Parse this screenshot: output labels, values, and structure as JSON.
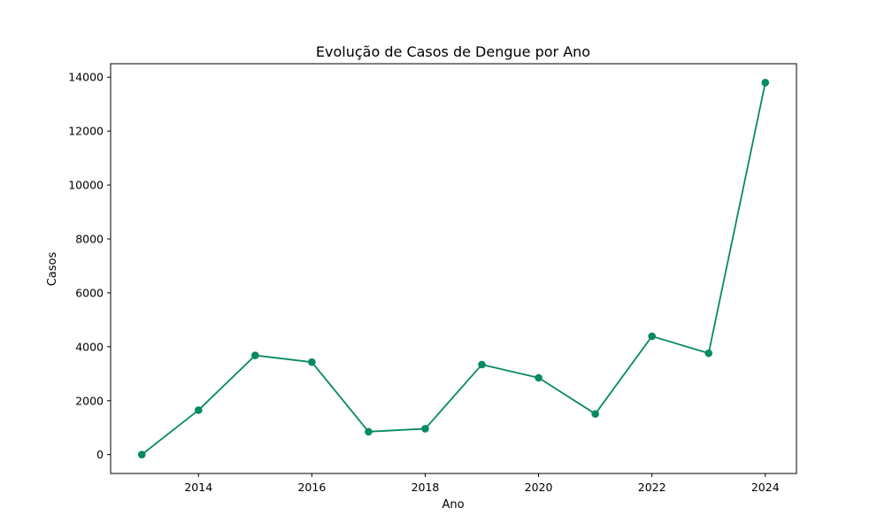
{
  "chart_data": {
    "type": "line",
    "title": "Evolução de Casos de Dengue por Ano",
    "xlabel": "Ano",
    "ylabel": "Casos",
    "xlim": [
      2012.45,
      2024.55
    ],
    "ylim": [
      -700,
      14500
    ],
    "x_ticks": [
      2014,
      2016,
      2018,
      2020,
      2022,
      2024
    ],
    "y_ticks": [
      0,
      2000,
      4000,
      6000,
      8000,
      10000,
      12000,
      14000
    ],
    "grid": false,
    "legend": "none",
    "series": [
      {
        "color": "#078a63",
        "marker": "circle",
        "x": [
          2013,
          2014,
          2015,
          2016,
          2017,
          2018,
          2019,
          2020,
          2021,
          2022,
          2023,
          2024
        ],
        "y": [
          0,
          1650,
          3680,
          3430,
          850,
          960,
          3340,
          2850,
          1510,
          4390,
          3760,
          13800
        ]
      }
    ]
  }
}
